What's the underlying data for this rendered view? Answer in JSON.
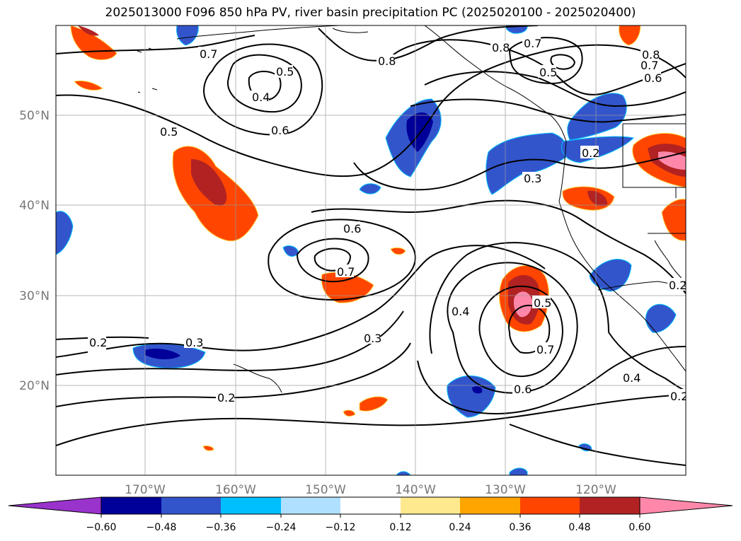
{
  "title": "2025013000 F096 850 hPa PV, river basin precipitation PC (2025020100 - 2025020400)",
  "map": {
    "lon_labels": [
      "170°W",
      "160°W",
      "150°W",
      "140°W",
      "130°W",
      "120°W"
    ],
    "lat_labels": [
      "50°N",
      "40°N",
      "30°N",
      "20°N"
    ],
    "contour_labels": [
      {
        "text": "0.7"
      },
      {
        "text": "0.5"
      },
      {
        "text": "0.4"
      },
      {
        "text": "0.6"
      },
      {
        "text": "0.5"
      },
      {
        "text": "0.8"
      },
      {
        "text": "0.8"
      },
      {
        "text": "0.7"
      },
      {
        "text": "0.5"
      },
      {
        "text": "0.8"
      },
      {
        "text": "0.7"
      },
      {
        "text": "0.6"
      },
      {
        "text": "0.2"
      },
      {
        "text": "0.3"
      },
      {
        "text": "0.6"
      },
      {
        "text": "0.7"
      },
      {
        "text": "0.4"
      },
      {
        "text": "0.5"
      },
      {
        "text": "0.7"
      },
      {
        "text": "0.6"
      },
      {
        "text": "0.3"
      },
      {
        "text": "0.3"
      },
      {
        "text": "0.2"
      },
      {
        "text": "0.2"
      },
      {
        "text": "0.4"
      },
      {
        "text": "0.2"
      },
      {
        "text": "0.2"
      }
    ]
  },
  "colorbar": {
    "ticks": [
      "−0.60",
      "−0.48",
      "−0.36",
      "−0.24",
      "−0.12",
      "0.12",
      "0.24",
      "0.36",
      "0.48",
      "0.60"
    ],
    "colors": [
      "#9933cc",
      "#000099",
      "#3355cc",
      "#00bfff",
      "#b0e0ff",
      "#ffffff",
      "#ffe98f",
      "#ffa500",
      "#ff4500",
      "#b22222",
      "#ff88aa"
    ]
  }
}
